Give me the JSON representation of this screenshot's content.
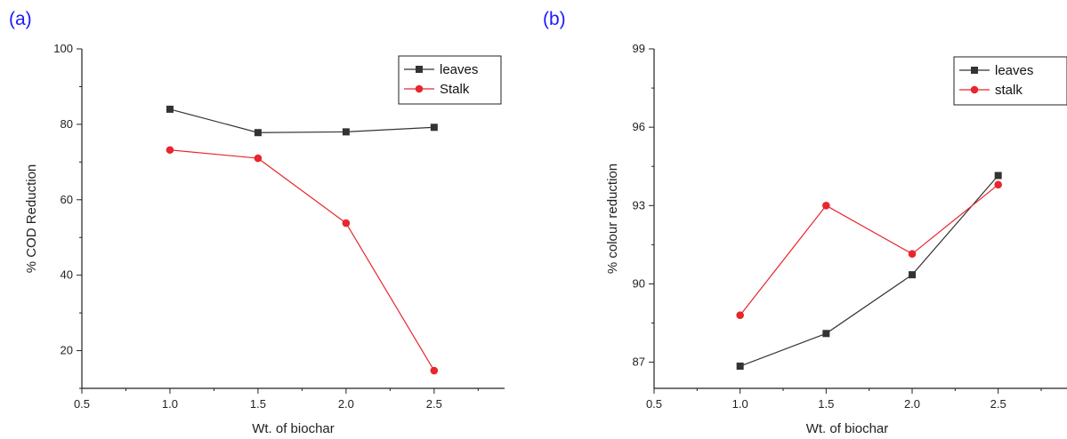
{
  "panels": [
    "(a)",
    "(b)"
  ],
  "chart_data": [
    {
      "type": "line",
      "x": [
        1.0,
        1.5,
        2.0,
        2.5
      ],
      "series": [
        {
          "name": "leaves",
          "values": [
            84.0,
            77.8,
            78.0,
            79.2
          ],
          "color": "#333333",
          "marker": "square"
        },
        {
          "name": "Stalk",
          "values": [
            73.2,
            71.0,
            53.8,
            14.7
          ],
          "color": "#e8262d",
          "marker": "circle"
        }
      ],
      "xlabel": "Wt. of biochar",
      "ylabel": "% COD Reduction",
      "xlim": [
        0.5,
        2.9
      ],
      "ylim": [
        10,
        100
      ],
      "xticks": [
        "0.5",
        "1.0",
        "1.5",
        "2.0",
        "2.5"
      ],
      "yticks": [
        "20",
        "40",
        "60",
        "80",
        "100"
      ],
      "legend": "top-right",
      "grid": false
    },
    {
      "type": "line",
      "x": [
        1.0,
        1.5,
        2.0,
        2.5
      ],
      "series": [
        {
          "name": "leaves",
          "values": [
            86.85,
            88.1,
            90.35,
            94.15
          ],
          "color": "#333333",
          "marker": "square"
        },
        {
          "name": "stalk",
          "values": [
            88.8,
            93.0,
            91.15,
            93.8
          ],
          "color": "#e8262d",
          "marker": "circle"
        }
      ],
      "xlabel": "Wt. of biochar",
      "ylabel": "% colour reduction",
      "xlim": [
        0.5,
        2.9
      ],
      "ylim": [
        86,
        99
      ],
      "xticks": [
        "0.5",
        "1.0",
        "1.5",
        "2.0",
        "2.5"
      ],
      "yticks": [
        "87",
        "90",
        "93",
        "96",
        "99"
      ],
      "legend": "top-right",
      "grid": false
    }
  ]
}
